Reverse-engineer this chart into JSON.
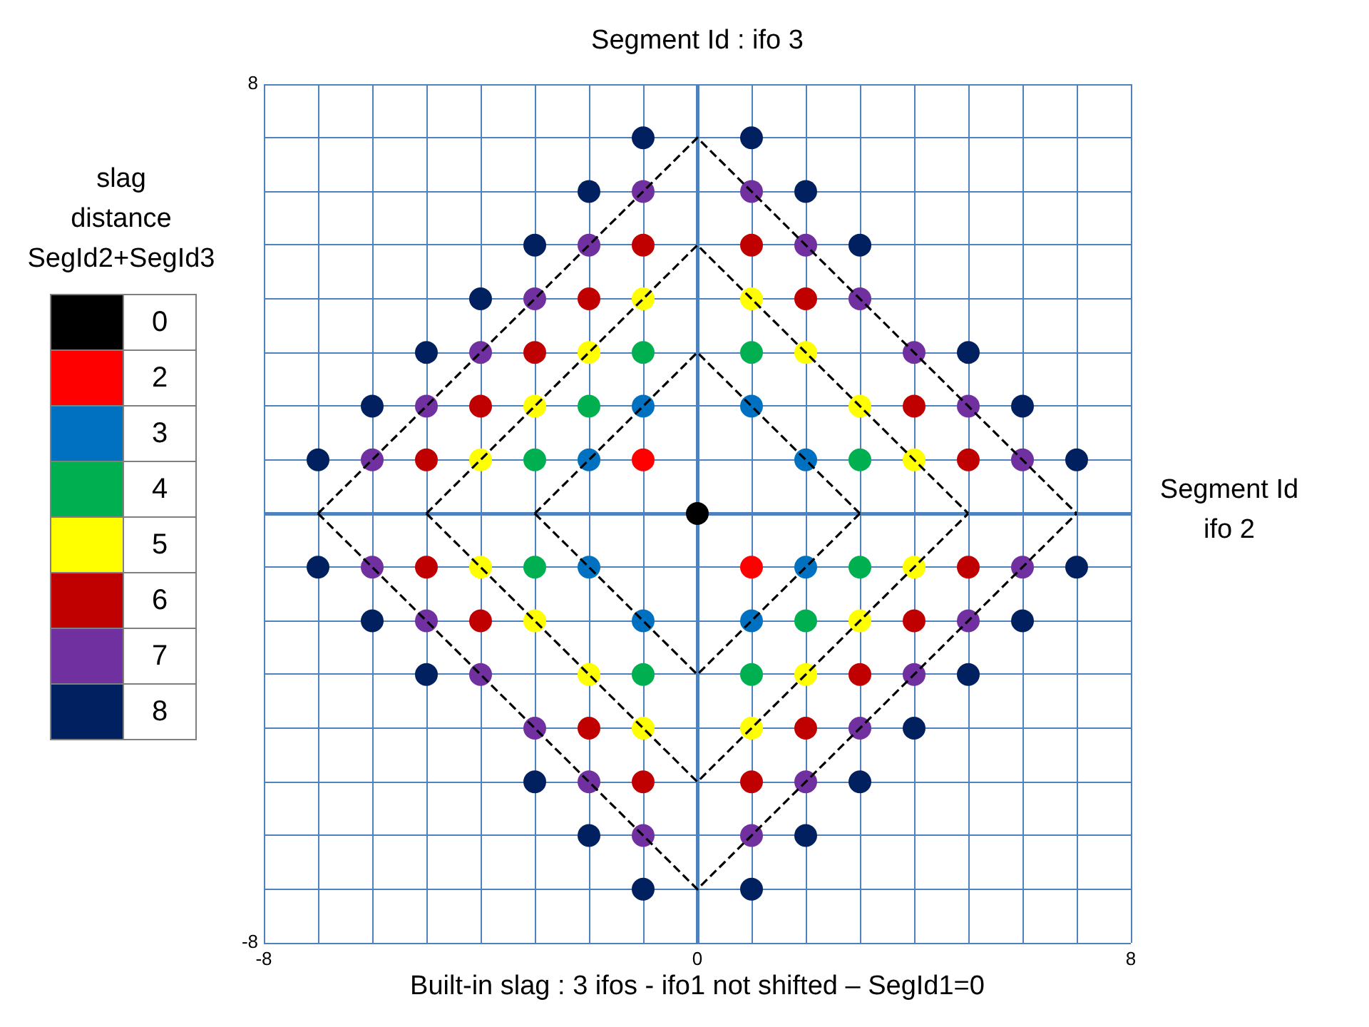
{
  "chart_data": {
    "type": "scatter",
    "title": "Built-in slag : 3 ifos - ifo1 not shifted – SegId1=0",
    "xlabel": "Segment Id ifo 2",
    "ylabel": "Segment Id : ifo 3",
    "legend_title": "slag distance SegId2+SegId3",
    "legend": "left",
    "grid": true,
    "marker": "circle",
    "xlim": [
      -8,
      8
    ],
    "ylim": [
      -8,
      8
    ],
    "xticks": [
      -8,
      {
        "value": -7,
        "label": null
      },
      {
        "value": -6,
        "label": null
      },
      {
        "value": -5,
        "label": null
      },
      {
        "value": -4,
        "label": null
      },
      {
        "value": -3,
        "label": null
      },
      {
        "value": -2,
        "label": null
      },
      {
        "value": -1,
        "label": null
      },
      0,
      {
        "value": 1,
        "label": null
      },
      {
        "value": 2,
        "label": null
      },
      {
        "value": 3,
        "label": null
      },
      {
        "value": 4,
        "label": null
      },
      {
        "value": 5,
        "label": null
      },
      {
        "value": 6,
        "label": null
      },
      {
        "value": 7,
        "label": null
      },
      8
    ],
    "yticks": [
      -8,
      {
        "value": -7,
        "label": null
      },
      {
        "value": -6,
        "label": null
      },
      {
        "value": -5,
        "label": null
      },
      {
        "value": -4,
        "label": null
      },
      {
        "value": -3,
        "label": null
      },
      {
        "value": -2,
        "label": null
      },
      {
        "value": -1,
        "label": null
      },
      {
        "value": 0,
        "label": null
      },
      {
        "value": 1,
        "label": null
      },
      {
        "value": 2,
        "label": null
      },
      {
        "value": 3,
        "label": null
      },
      {
        "value": 4,
        "label": null
      },
      {
        "value": 5,
        "label": null
      },
      {
        "value": 6,
        "label": null
      },
      {
        "value": 7,
        "label": null
      },
      8
    ],
    "series": [
      {
        "name": "0",
        "color": "#000000",
        "x": [
          0
        ],
        "values": [
          0
        ]
      },
      {
        "name": "2",
        "color": "#ff0000",
        "x": [
          -1,
          1
        ],
        "values": [
          1,
          -1
        ]
      },
      {
        "name": "3",
        "color": "#0070c0",
        "x": [
          -2,
          -1,
          1,
          2,
          -2,
          -1,
          1,
          2
        ],
        "values": [
          1,
          2,
          2,
          1,
          -1,
          -2,
          -2,
          -1
        ]
      },
      {
        "name": "4",
        "color": "#00b050",
        "x": [
          -3,
          -2,
          -1,
          1,
          3,
          -3,
          -1,
          1,
          2,
          3
        ],
        "values": [
          1,
          2,
          3,
          3,
          1,
          -1,
          -3,
          -3,
          -2,
          -1
        ]
      },
      {
        "name": "5",
        "color": "#ffff00",
        "x": [
          -4,
          -3,
          -2,
          -1,
          1,
          2,
          3,
          4,
          -4,
          -3,
          -2,
          -1,
          1,
          2,
          3,
          4
        ],
        "values": [
          1,
          2,
          3,
          4,
          4,
          3,
          2,
          1,
          -1,
          -2,
          -3,
          -4,
          -4,
          -3,
          -2,
          -1
        ]
      },
      {
        "name": "6",
        "color": "#c00000",
        "x": [
          -5,
          -4,
          -3,
          -2,
          -1,
          1,
          2,
          4,
          5,
          -5,
          -4,
          -2,
          -1,
          1,
          2,
          3,
          4,
          5
        ],
        "values": [
          1,
          2,
          3,
          4,
          5,
          5,
          4,
          2,
          1,
          -1,
          -2,
          -4,
          -5,
          -5,
          -4,
          -3,
          -2,
          -1
        ]
      },
      {
        "name": "7",
        "color": "#7030a0",
        "x": [
          -6,
          -5,
          -4,
          -3,
          -2,
          -1,
          1,
          2,
          3,
          4,
          5,
          6,
          -6,
          -5,
          -4,
          -3,
          -2,
          -1,
          1,
          2,
          3,
          4,
          5,
          6
        ],
        "values": [
          1,
          2,
          3,
          4,
          5,
          6,
          6,
          5,
          4,
          3,
          2,
          1,
          -1,
          -2,
          -3,
          -4,
          -5,
          -6,
          -6,
          -5,
          -4,
          -3,
          -2,
          -1
        ]
      },
      {
        "name": "8",
        "color": "#002060",
        "x": [
          -7,
          -6,
          -5,
          -4,
          -3,
          -2,
          -1,
          1,
          2,
          3,
          5,
          6,
          7,
          -7,
          -6,
          -5,
          -3,
          -2,
          -1,
          1,
          2,
          3,
          4,
          5,
          6,
          7
        ],
        "values": [
          1,
          2,
          3,
          4,
          5,
          6,
          7,
          7,
          6,
          5,
          3,
          2,
          1,
          -1,
          -2,
          -3,
          -5,
          -6,
          -7,
          -7,
          -6,
          -5,
          -4,
          -3,
          -2,
          -1
        ]
      },
      {
        "type": "line",
        "color": "#000000",
        "line_style": "dashed",
        "marker": "none",
        "x": [
          -7,
          0,
          7
        ],
        "values": [
          0,
          7,
          0
        ]
      },
      {
        "type": "line",
        "color": "#000000",
        "line_style": "dashed",
        "marker": "none",
        "x": [
          -7,
          0,
          7
        ],
        "values": [
          0,
          -7,
          0
        ]
      },
      {
        "type": "line",
        "color": "#000000",
        "line_style": "dashed",
        "marker": "none",
        "x": [
          -5,
          0,
          5
        ],
        "values": [
          0,
          5,
          0
        ]
      },
      {
        "type": "line",
        "color": "#000000",
        "line_style": "dashed",
        "marker": "none",
        "x": [
          -5,
          0,
          5
        ],
        "values": [
          0,
          -5,
          0
        ]
      },
      {
        "type": "line",
        "color": "#000000",
        "line_style": "dashed",
        "marker": "none",
        "x": [
          -3,
          0,
          3
        ],
        "values": [
          0,
          3,
          0
        ]
      },
      {
        "type": "line",
        "color": "#000000",
        "line_style": "dashed",
        "marker": "none",
        "x": [
          -3,
          0,
          3
        ],
        "values": [
          0,
          -3,
          0
        ]
      }
    ]
  }
}
